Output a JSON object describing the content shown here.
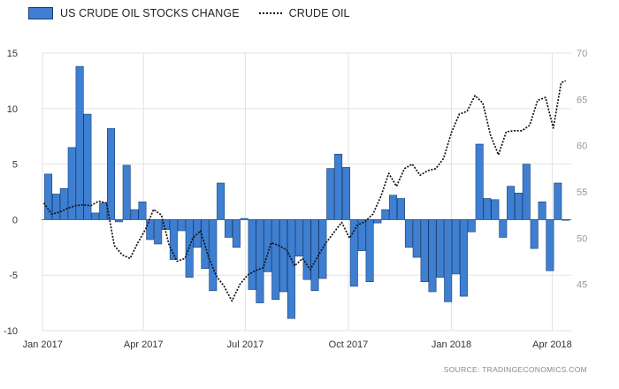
{
  "legend": {
    "bars_label": "US CRUDE OIL STOCKS CHANGE",
    "line_label": "CRUDE OIL"
  },
  "source": "SOURCE: TRADINGECONOMICS.COM",
  "colors": {
    "bar_fill": "#3e7fd1",
    "bar_stroke": "#1b3f73",
    "line": "#111111",
    "grid": "#e3e3e3"
  },
  "chart_data": {
    "type": "bar+line",
    "title": "",
    "x_ticks": [
      "Jan 2017",
      "Apr 2017",
      "Jul 2017",
      "Oct 2017",
      "Jan 2018",
      "Apr 2018"
    ],
    "left_axis": {
      "min": -10,
      "max": 15,
      "ticks": [
        -10,
        -5,
        0,
        5,
        10,
        15
      ],
      "tick_labels": [
        "-10",
        "-5",
        "0",
        "5",
        "10",
        "15"
      ]
    },
    "right_axis": {
      "min": 40,
      "max": 70,
      "ticks": [
        40,
        45,
        50,
        55,
        60,
        65,
        70
      ],
      "tick_labels": [
        "",
        "45",
        "50",
        "55",
        "60",
        "65",
        "70"
      ]
    },
    "grid": true,
    "series": [
      {
        "name": "US CRUDE OIL STOCKS CHANGE",
        "kind": "bar",
        "axis": "left",
        "dates": [
          "2017-01-06",
          "2017-01-13",
          "2017-01-20",
          "2017-01-27",
          "2017-02-03",
          "2017-02-10",
          "2017-02-17",
          "2017-02-24",
          "2017-03-03",
          "2017-03-10",
          "2017-03-17",
          "2017-03-24",
          "2017-03-31",
          "2017-04-07",
          "2017-04-14",
          "2017-04-21",
          "2017-04-28",
          "2017-05-05",
          "2017-05-12",
          "2017-05-19",
          "2017-05-26",
          "2017-06-02",
          "2017-06-09",
          "2017-06-16",
          "2017-06-23",
          "2017-06-30",
          "2017-07-07",
          "2017-07-14",
          "2017-07-21",
          "2017-07-28",
          "2017-08-04",
          "2017-08-11",
          "2017-08-18",
          "2017-08-25",
          "2017-09-01",
          "2017-09-08",
          "2017-09-15",
          "2017-09-22",
          "2017-09-29",
          "2017-10-06",
          "2017-10-13",
          "2017-10-20",
          "2017-10-27",
          "2017-11-03",
          "2017-11-10",
          "2017-11-17",
          "2017-11-24",
          "2017-12-01",
          "2017-12-08",
          "2017-12-15",
          "2017-12-22",
          "2017-12-29",
          "2018-01-05",
          "2018-01-12",
          "2018-01-19",
          "2018-01-26",
          "2018-02-02",
          "2018-02-09",
          "2018-02-16",
          "2018-02-23",
          "2018-03-02",
          "2018-03-09",
          "2018-03-16",
          "2018-03-23",
          "2018-03-30",
          "2018-04-06",
          "2018-04-13"
        ],
        "values": [
          4.1,
          2.3,
          2.8,
          6.5,
          13.8,
          9.5,
          0.6,
          1.5,
          8.2,
          -0.2,
          4.9,
          0.9,
          1.6,
          -1.8,
          -2.2,
          -0.9,
          -3.6,
          -1.0,
          -5.2,
          -2.5,
          -4.4,
          -6.4,
          3.3,
          -1.6,
          -2.5,
          0.1,
          -6.3,
          -7.5,
          -4.7,
          -7.2,
          -6.5,
          -8.9,
          -3.3,
          -5.4,
          -6.4,
          -5.3,
          4.6,
          5.9,
          4.7,
          -6.0,
          -2.8,
          -5.6,
          -0.3,
          0.9,
          2.2,
          1.9,
          -2.5,
          -3.4,
          -5.6,
          -6.5,
          -5.2,
          -7.4,
          -4.9,
          -6.9,
          -1.1,
          6.8,
          1.9,
          1.8,
          -1.6,
          3.0,
          2.4,
          5.0,
          -2.6,
          1.6,
          -4.6,
          3.3,
          0.0
        ]
      },
      {
        "name": "CRUDE OIL",
        "kind": "line",
        "style": "dotted",
        "axis": "right",
        "dates": [
          "2017-01-02",
          "2017-01-09",
          "2017-01-16",
          "2017-01-23",
          "2017-01-30",
          "2017-02-06",
          "2017-02-13",
          "2017-02-20",
          "2017-02-27",
          "2017-03-06",
          "2017-03-13",
          "2017-03-20",
          "2017-03-27",
          "2017-04-03",
          "2017-04-10",
          "2017-04-17",
          "2017-04-24",
          "2017-05-01",
          "2017-05-08",
          "2017-05-15",
          "2017-05-22",
          "2017-05-29",
          "2017-06-05",
          "2017-06-12",
          "2017-06-19",
          "2017-06-26",
          "2017-07-03",
          "2017-07-10",
          "2017-07-17",
          "2017-07-24",
          "2017-07-31",
          "2017-08-07",
          "2017-08-14",
          "2017-08-21",
          "2017-08-28",
          "2017-09-04",
          "2017-09-11",
          "2017-09-18",
          "2017-09-25",
          "2017-10-02",
          "2017-10-09",
          "2017-10-16",
          "2017-10-23",
          "2017-10-30",
          "2017-11-06",
          "2017-11-13",
          "2017-11-20",
          "2017-11-27",
          "2017-12-04",
          "2017-12-11",
          "2017-12-18",
          "2017-12-25",
          "2018-01-01",
          "2018-01-08",
          "2018-01-15",
          "2018-01-22",
          "2018-01-29",
          "2018-02-05",
          "2018-02-12",
          "2018-02-19",
          "2018-02-26",
          "2018-03-05",
          "2018-03-12",
          "2018-03-19",
          "2018-03-26",
          "2018-04-02",
          "2018-04-09",
          "2018-04-13"
        ],
        "values": [
          53.8,
          52.6,
          52.8,
          53.2,
          53.5,
          53.6,
          53.5,
          54.0,
          53.8,
          49.2,
          48.2,
          47.8,
          49.5,
          51.0,
          53.1,
          52.5,
          49.2,
          47.5,
          47.8,
          50.0,
          50.8,
          48.0,
          45.9,
          44.8,
          43.2,
          45.0,
          46.0,
          46.5,
          46.8,
          49.5,
          49.2,
          48.7,
          47.0,
          47.8,
          46.6,
          48.1,
          49.5,
          50.6,
          51.7,
          50.0,
          51.4,
          51.8,
          52.6,
          54.5,
          57.0,
          55.6,
          57.5,
          58.0,
          56.8,
          57.3,
          57.5,
          58.6,
          61.4,
          63.4,
          63.7,
          65.4,
          64.6,
          61.1,
          59.0,
          61.5,
          61.6,
          61.6,
          62.2,
          64.9,
          65.2,
          61.9,
          66.8,
          67.0
        ]
      }
    ]
  }
}
